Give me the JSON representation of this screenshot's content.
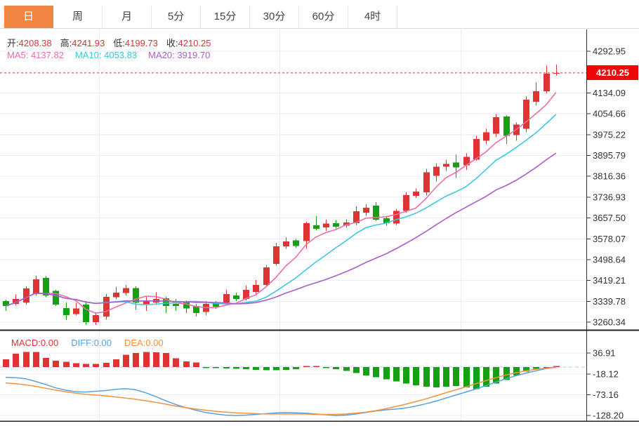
{
  "tabs": [
    {
      "label": "日",
      "name": "day",
      "active": true
    },
    {
      "label": "周",
      "name": "week",
      "active": false
    },
    {
      "label": "月",
      "name": "month",
      "active": false
    },
    {
      "label": "5分",
      "name": "5min",
      "active": false
    },
    {
      "label": "15分",
      "name": "15min",
      "active": false
    },
    {
      "label": "30分",
      "name": "30min",
      "active": false
    },
    {
      "label": "60分",
      "name": "60min",
      "active": false
    },
    {
      "label": "4时",
      "name": "4hour",
      "active": false
    }
  ],
  "ohlc_legend": {
    "open_label": "开:",
    "open": "4208.38",
    "high_label": "高:",
    "high": "4241.93",
    "low_label": "低:",
    "low": "4199.73",
    "close_label": "收:",
    "close": "4210.25"
  },
  "ma_legend": [
    {
      "label": "MA5:",
      "value": "4137.82",
      "color": "#ef6da8"
    },
    {
      "label": "MA10:",
      "value": "4053.83",
      "color": "#3ec8e0"
    },
    {
      "label": "MA20:",
      "value": "3919.70",
      "color": "#aa5cc8"
    }
  ],
  "macd_legend": [
    {
      "label": "MACD:",
      "value": "0.00",
      "color": "#e03333"
    },
    {
      "label": "DIFF:",
      "value": "0.00",
      "color": "#5aa2dd"
    },
    {
      "label": "DEA:",
      "value": "0.00",
      "color": "#f5923e"
    }
  ],
  "price_axis": {
    "current_price": "4210.25"
  },
  "chart_data": {
    "type": "candlestick",
    "title": "",
    "xlabel": "",
    "ylabel": "price",
    "y_ticks": [
      4292.95,
      4134.09,
      4054.66,
      3975.22,
      3895.79,
      3816.36,
      3736.93,
      3657.5,
      3578.07,
      3498.64,
      3419.21,
      3339.78,
      3260.34
    ],
    "current_price": 4210.25,
    "grid": true,
    "legend_position": "top-left",
    "ohlc": [
      [
        3341,
        3346,
        3303,
        3322
      ],
      [
        3330,
        3367,
        3325,
        3349
      ],
      [
        3335,
        3397,
        3327,
        3389
      ],
      [
        3368,
        3437,
        3361,
        3424
      ],
      [
        3429,
        3436,
        3356,
        3362
      ],
      [
        3379,
        3384,
        3322,
        3328
      ],
      [
        3314,
        3335,
        3268,
        3287
      ],
      [
        3292,
        3335,
        3287,
        3313
      ],
      [
        3327,
        3341,
        3250,
        3260
      ],
      [
        3260,
        3298,
        3250,
        3287
      ],
      [
        3282,
        3368,
        3270,
        3357
      ],
      [
        3355,
        3395,
        3348,
        3373
      ],
      [
        3371,
        3402,
        3362,
        3390
      ],
      [
        3390,
        3397,
        3308,
        3335
      ],
      [
        3327,
        3357,
        3303,
        3343
      ],
      [
        3335,
        3375,
        3327,
        3349
      ],
      [
        3351,
        3357,
        3295,
        3322
      ],
      [
        3330,
        3349,
        3303,
        3322
      ],
      [
        3335,
        3343,
        3295,
        3313
      ],
      [
        3322,
        3330,
        3282,
        3295
      ],
      [
        3300,
        3341,
        3287,
        3330
      ],
      [
        3333,
        3341,
        3311,
        3320
      ],
      [
        3335,
        3384,
        3327,
        3368
      ],
      [
        3362,
        3373,
        3341,
        3349
      ],
      [
        3349,
        3400,
        3343,
        3384
      ],
      [
        3376,
        3421,
        3368,
        3402
      ],
      [
        3402,
        3478,
        3397,
        3469
      ],
      [
        3483,
        3563,
        3476,
        3550
      ],
      [
        3550,
        3584,
        3540,
        3568
      ],
      [
        3572,
        3578,
        3543,
        3551
      ],
      [
        3569,
        3643,
        3540,
        3638
      ],
      [
        3630,
        3665,
        3610,
        3617
      ],
      [
        3622,
        3652,
        3609,
        3636
      ],
      [
        3638,
        3650,
        3617,
        3625
      ],
      [
        3628,
        3652,
        3620,
        3641
      ],
      [
        3638,
        3702,
        3630,
        3683
      ],
      [
        3678,
        3710,
        3665,
        3697
      ],
      [
        3705,
        3718,
        3646,
        3651
      ],
      [
        3657,
        3665,
        3628,
        3638
      ],
      [
        3636,
        3692,
        3630,
        3684
      ],
      [
        3684,
        3756,
        3678,
        3745
      ],
      [
        3742,
        3770,
        3734,
        3758
      ],
      [
        3756,
        3845,
        3743,
        3832
      ],
      [
        3818,
        3866,
        3797,
        3853
      ],
      [
        3853,
        3880,
        3837,
        3864
      ],
      [
        3869,
        3899,
        3810,
        3850
      ],
      [
        3858,
        3904,
        3840,
        3890
      ],
      [
        3880,
        3971,
        3875,
        3958
      ],
      [
        3952,
        3998,
        3939,
        3984
      ],
      [
        3979,
        4054,
        3966,
        4041
      ],
      [
        4044,
        4049,
        3939,
        3971
      ],
      [
        3974,
        4022,
        3952,
        4014
      ],
      [
        3998,
        4121,
        3984,
        4108
      ],
      [
        4100,
        4175,
        4086,
        4140
      ],
      [
        4140,
        4239,
        4132,
        4207
      ],
      [
        4208.38,
        4241.93,
        4199.73,
        4210.25
      ]
    ],
    "macd": {
      "ticks": [
        36.91,
        -18.12,
        -73.16,
        -128.2
      ],
      "histogram": [
        20,
        35,
        40,
        40,
        24,
        17,
        14,
        10,
        8,
        8,
        11,
        20,
        32,
        37,
        40,
        39,
        37,
        23,
        15,
        12,
        -2,
        -3,
        -4,
        -5,
        -6,
        -7,
        -8,
        -8,
        -7,
        -6,
        3,
        2,
        -3,
        -6,
        -10,
        -16,
        -22,
        -27,
        -32,
        -38,
        -44,
        -48,
        -52,
        -54,
        -52,
        -50,
        -54,
        -58,
        -52,
        -44,
        -34,
        -22,
        -12,
        -5,
        -1,
        0.5
      ],
      "diff": [
        -27,
        -28,
        -31,
        -38,
        -46,
        -55,
        -61,
        -65,
        -66,
        -64,
        -62,
        -59,
        -57,
        -60,
        -68,
        -78,
        -89,
        -99,
        -107,
        -114,
        -120,
        -124,
        -127,
        -128,
        -127,
        -125,
        -123,
        -121,
        -120,
        -121,
        -122,
        -124,
        -126,
        -128,
        -127,
        -124,
        -120,
        -116,
        -113,
        -111,
        -108,
        -103,
        -97,
        -90,
        -82,
        -74,
        -66,
        -58,
        -49,
        -40,
        -31,
        -23,
        -16,
        -10,
        -4,
        0
      ],
      "dea": [
        -42,
        -44,
        -47,
        -51,
        -56,
        -61,
        -65,
        -69,
        -72,
        -74,
        -76,
        -79,
        -82,
        -85,
        -89,
        -93,
        -98,
        -103,
        -107,
        -111,
        -114,
        -117,
        -119,
        -121,
        -122,
        -123,
        -124,
        -124,
        -124,
        -124,
        -124,
        -125,
        -125,
        -125,
        -124,
        -122,
        -119,
        -115,
        -110,
        -104,
        -98,
        -91,
        -84,
        -76,
        -68,
        -60,
        -52,
        -44,
        -36,
        -28,
        -21,
        -15,
        -10,
        -6,
        -3,
        -1
      ]
    },
    "colors": {
      "up": "#e03333",
      "down": "#13a113",
      "ma5": "#ef6da8",
      "ma10": "#3ec8e0",
      "ma20": "#aa5cc8",
      "diff": "#5aa2dd",
      "dea": "#f5923e",
      "grid": "#e9eef4",
      "axis": "#333333",
      "separator": "#222222",
      "price_line": "#e03333",
      "badge": "#ee0808",
      "zero_line": "#bfe3f0"
    }
  }
}
